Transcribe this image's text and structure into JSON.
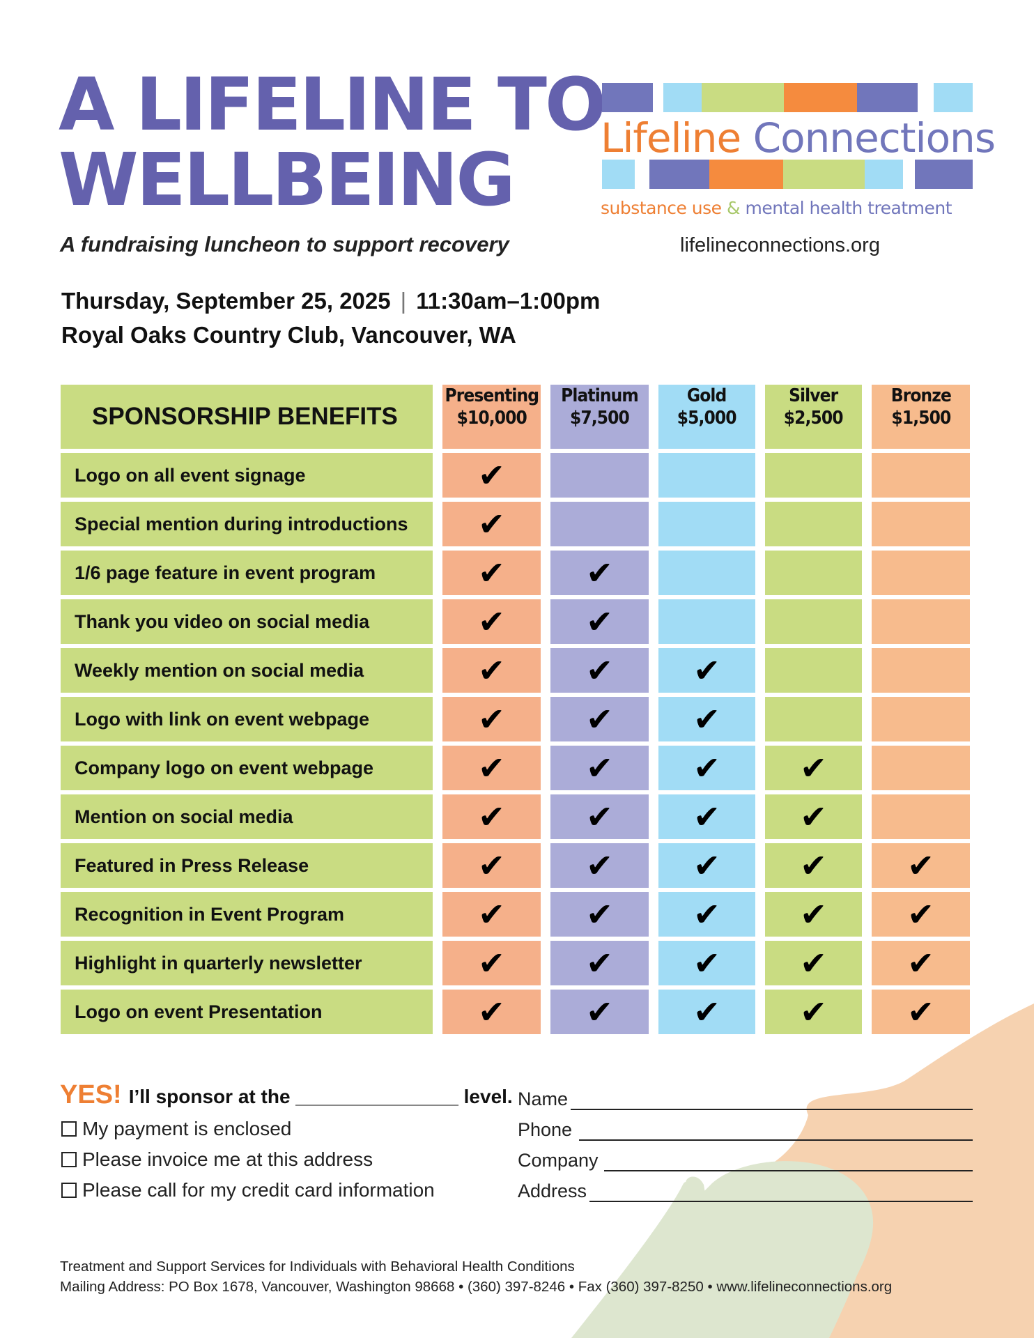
{
  "title": {
    "line1": "A LIFELINE TO",
    "line2": "WELLBEING"
  },
  "subtitle": "A fundraising luncheon to support recovery",
  "event": {
    "date": "Thursday, September 25, 2025",
    "separator": "|",
    "time": "11:30am–1:00pm",
    "venue": "Royal Oaks Country Club, Vancouver, WA"
  },
  "logo": {
    "word1": "Lifeline",
    "word2": "Connections",
    "tagline_a": "substance use",
    "tagline_amp": "&",
    "tagline_b": "mental health treatment",
    "url": "lifelineconnections.org"
  },
  "colors": {
    "purple": "#6461ad",
    "orange": "#ee7f33",
    "green": "#c9dc82",
    "presenting": "#f5b08a",
    "platinum": "#abacd8",
    "gold": "#a1dcf5",
    "silver": "#c9dc82",
    "bronze": "#f7bb8d"
  },
  "table": {
    "heading": "SPONSORSHIP BENEFITS",
    "levels": [
      {
        "name": "Presenting",
        "price": "$10,000"
      },
      {
        "name": "Platinum",
        "price": "$7,500"
      },
      {
        "name": "Gold",
        "price": "$5,000"
      },
      {
        "name": "Silver",
        "price": "$2,500"
      },
      {
        "name": "Bronze",
        "price": "$1,500"
      }
    ],
    "check_symbol": "✔",
    "rows": [
      {
        "benefit": "Logo on all event signage",
        "checks": [
          1,
          0,
          0,
          0,
          0
        ]
      },
      {
        "benefit": "Special mention during introductions",
        "checks": [
          1,
          0,
          0,
          0,
          0
        ]
      },
      {
        "benefit": "1/6 page feature in event program",
        "checks": [
          1,
          1,
          0,
          0,
          0
        ]
      },
      {
        "benefit": "Thank you video on social media",
        "checks": [
          1,
          1,
          0,
          0,
          0
        ]
      },
      {
        "benefit": "Weekly mention on social media",
        "checks": [
          1,
          1,
          1,
          0,
          0
        ]
      },
      {
        "benefit": "Logo with link on event webpage",
        "checks": [
          1,
          1,
          1,
          0,
          0
        ]
      },
      {
        "benefit": "Company logo on event webpage",
        "checks": [
          1,
          1,
          1,
          1,
          0
        ]
      },
      {
        "benefit": "Mention on social media",
        "checks": [
          1,
          1,
          1,
          1,
          0
        ]
      },
      {
        "benefit": "Featured in Press Release",
        "checks": [
          1,
          1,
          1,
          1,
          1
        ]
      },
      {
        "benefit": "Recognition in Event Program",
        "checks": [
          1,
          1,
          1,
          1,
          1
        ]
      },
      {
        "benefit": "Highlight in quarterly newsletter",
        "checks": [
          1,
          1,
          1,
          1,
          1
        ]
      },
      {
        "benefit": "Logo on event Presentation",
        "checks": [
          1,
          1,
          1,
          1,
          1
        ]
      }
    ]
  },
  "form": {
    "yes": "YES!",
    "pledge": "I’ll sponsor at the _______________ level.",
    "options": [
      "My payment is enclosed",
      "Please invoice me at this address",
      "Please call for my credit card information"
    ],
    "fields": [
      "Name",
      "Phone",
      "Company",
      "Address"
    ]
  },
  "footer": {
    "line1": "Treatment and Support Services for Individuals with Behavioral Health Conditions",
    "line2": "Mailing Address: PO Box 1678, Vancouver, Washington 98668 • (360) 397-8246 • Fax (360) 397-8250 • www.lifelineconnections.org"
  }
}
